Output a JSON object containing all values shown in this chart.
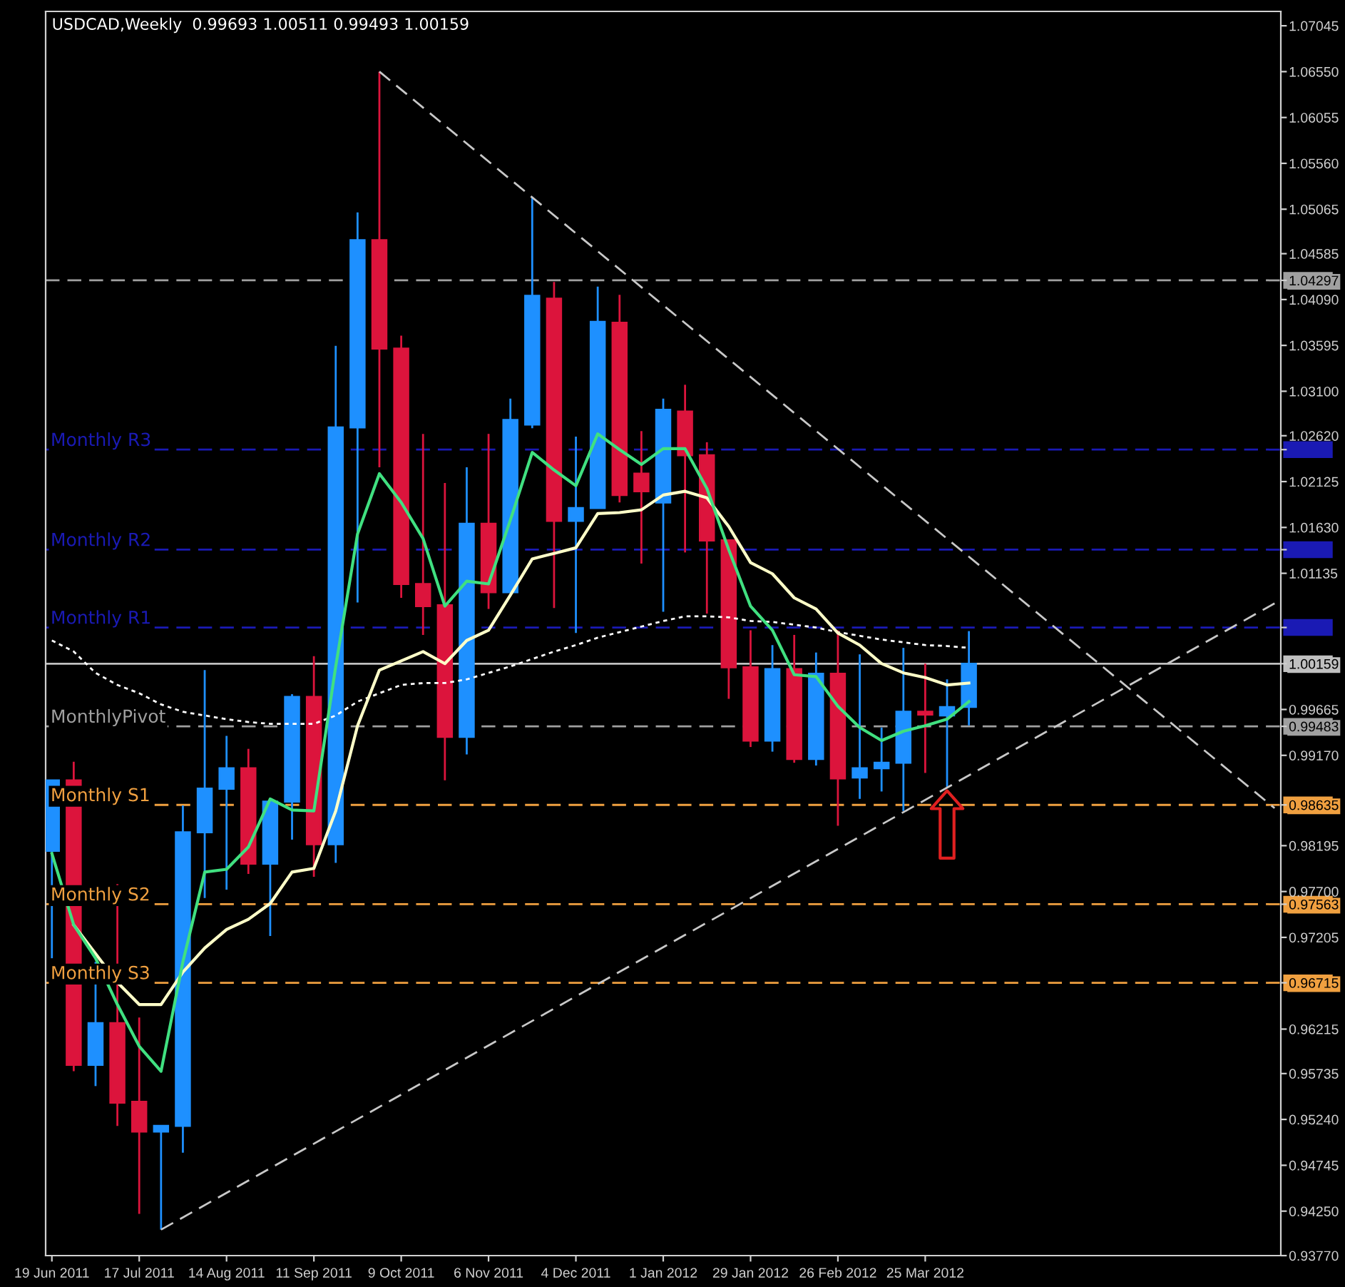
{
  "chart_data": {
    "type": "candlestick",
    "title": "USDCAD,Weekly  0.99693 1.00511 0.99493 1.00159",
    "x": [
      "2011-06-19",
      "2011-06-26",
      "2011-07-03",
      "2011-07-10",
      "2011-07-17",
      "2011-07-24",
      "2011-07-31",
      "2011-08-07",
      "2011-08-14",
      "2011-08-21",
      "2011-08-28",
      "2011-09-04",
      "2011-09-11",
      "2011-09-18",
      "2011-09-25",
      "2011-10-02",
      "2011-10-09",
      "2011-10-16",
      "2011-10-23",
      "2011-10-30",
      "2011-11-06",
      "2011-11-13",
      "2011-11-20",
      "2011-11-27",
      "2011-12-04",
      "2011-12-11",
      "2011-12-18",
      "2011-12-25",
      "2012-01-01",
      "2012-01-08",
      "2012-01-15",
      "2012-01-22",
      "2012-01-29",
      "2012-02-05",
      "2012-02-12",
      "2012-02-19",
      "2012-02-26",
      "2012-03-04",
      "2012-03-11",
      "2012-03-18",
      "2012-03-25",
      "2012-04-01",
      "2012-04-08"
    ],
    "ohlc": [
      [
        0.9814,
        0.989,
        0.9698,
        0.989
      ],
      [
        0.989,
        0.991,
        0.9576,
        0.9583
      ],
      [
        0.9583,
        0.9694,
        0.956,
        0.9628
      ],
      [
        0.9628,
        0.9778,
        0.9517,
        0.9542
      ],
      [
        0.9543,
        0.9634,
        0.9422,
        0.9511
      ],
      [
        0.9511,
        0.9517,
        0.9405,
        0.9517
      ],
      [
        0.9517,
        0.9863,
        0.9488,
        0.9834
      ],
      [
        0.9834,
        1.0009,
        0.9763,
        0.9881
      ],
      [
        0.9881,
        0.9938,
        0.9772,
        0.9903
      ],
      [
        0.9903,
        0.9924,
        0.9789,
        0.98
      ],
      [
        0.98,
        0.987,
        0.9722,
        0.9867
      ],
      [
        0.9867,
        0.9983,
        0.9826,
        0.998
      ],
      [
        0.998,
        1.0024,
        0.9786,
        0.9821
      ],
      [
        0.9821,
        1.0359,
        0.9801,
        1.0271
      ],
      [
        1.0271,
        1.0503,
        1.0082,
        1.0473
      ],
      [
        1.0473,
        1.0655,
        1.0228,
        1.0356
      ],
      [
        1.0356,
        1.037,
        1.0087,
        1.0102
      ],
      [
        1.0102,
        1.0264,
        1.0047,
        1.0078
      ],
      [
        1.0079,
        1.0211,
        0.989,
        0.9937
      ],
      [
        0.9937,
        1.0228,
        0.9918,
        1.0167
      ],
      [
        1.0167,
        1.0264,
        1.0075,
        1.0093
      ],
      [
        1.0093,
        1.0302,
        1.0093,
        1.0279
      ],
      [
        1.0274,
        1.052,
        1.027,
        1.0413
      ],
      [
        1.041,
        1.0428,
        1.0076,
        1.017
      ],
      [
        1.017,
        1.0261,
        1.0049,
        1.0184
      ],
      [
        1.0184,
        1.0423,
        1.0184,
        1.0385
      ],
      [
        1.0384,
        1.0414,
        1.019,
        1.0198
      ],
      [
        1.0221,
        1.0267,
        1.0124,
        1.0202
      ],
      [
        1.019,
        1.0302,
        1.0072,
        1.029
      ],
      [
        1.0288,
        1.0317,
        1.0136,
        1.0241
      ],
      [
        1.0241,
        1.0255,
        1.007,
        1.0149
      ],
      [
        1.0149,
        1.0149,
        0.9978,
        1.0012
      ],
      [
        1.0012,
        1.0052,
        0.9926,
        0.9933
      ],
      [
        0.9933,
        1.0036,
        0.9921,
        1.001
      ],
      [
        1.001,
        1.0047,
        0.9909,
        0.9913
      ],
      [
        0.9913,
        1.0028,
        0.9906,
        1.0005
      ],
      [
        1.0005,
        1.0052,
        0.9841,
        0.9892
      ],
      [
        0.9893,
        1.0026,
        0.987,
        0.9903
      ],
      [
        0.9903,
        0.9947,
        0.9878,
        0.9909
      ],
      [
        0.9909,
        1.0033,
        0.9857,
        0.9964
      ],
      [
        0.9964,
        1.0016,
        0.9898,
        0.9961
      ],
      [
        0.996,
        0.9999,
        0.9883,
        0.9969
      ],
      [
        0.99693,
        1.00511,
        0.99493,
        1.00159
      ]
    ],
    "colors": [
      "#1e90ff",
      "#dc143c",
      "#1e90ff",
      "#dc143c",
      "#dc143c",
      "#1e90ff",
      "#1e90ff",
      "#1e90ff",
      "#1e90ff",
      "#dc143c",
      "#1e90ff",
      "#1e90ff",
      "#dc143c",
      "#1e90ff",
      "#1e90ff",
      "#dc143c",
      "#dc143c",
      "#dc143c",
      "#dc143c",
      "#1e90ff",
      "#dc143c",
      "#1e90ff",
      "#1e90ff",
      "#dc143c",
      "#1e90ff",
      "#1e90ff",
      "#dc143c",
      "#dc143c",
      "#1e90ff",
      "#dc143c",
      "#dc143c",
      "#dc143c",
      "#dc143c",
      "#1e90ff",
      "#dc143c",
      "#1e90ff",
      "#dc143c",
      "#1e90ff",
      "#1e90ff",
      "#1e90ff",
      "#dc143c",
      "#1e90ff",
      "#1e90ff"
    ],
    "series": [
      {
        "type": "line",
        "color": "#ffffff",
        "line_style": "dotted",
        "values": [
          1.0041,
          1.0029,
          1.0006,
          0.9993,
          0.9984,
          0.9972,
          0.9964,
          0.996,
          0.9956,
          0.9953,
          0.9951,
          0.9951,
          0.9951,
          0.996,
          0.9975,
          0.9984,
          0.9993,
          0.9995,
          0.9995,
          0.9999,
          1.0006,
          1.0013,
          1.0021,
          1.0029,
          1.0036,
          1.0044,
          1.005,
          1.0056,
          1.0062,
          1.0067,
          1.0067,
          1.0066,
          1.0062,
          1.0061,
          1.0058,
          1.0055,
          1.005,
          1.0046,
          1.0042,
          1.0039,
          1.0036,
          1.0035,
          1.0033
        ]
      },
      {
        "type": "line",
        "color": "#ffffc8",
        "line_style": "solid",
        "values": [
          null,
          0.9734,
          0.9703,
          0.9672,
          0.9648,
          0.9648,
          0.9683,
          0.9709,
          0.9729,
          0.974,
          0.9757,
          0.9791,
          0.9795,
          0.9857,
          0.9949,
          1.0009,
          1.0019,
          1.0029,
          1.0016,
          1.0041,
          1.0052,
          1.009,
          1.0129,
          1.0135,
          1.0141,
          1.0178,
          1.0179,
          1.0182,
          1.0198,
          1.0202,
          1.0195,
          1.0164,
          1.0125,
          1.0113,
          1.0087,
          1.0075,
          1.0049,
          1.0036,
          1.0016,
          1.0006,
          1.0001,
          0.9993,
          0.9995
        ]
      },
      {
        "type": "line",
        "color": "#40e080",
        "line_style": "solid",
        "values": [
          0.9811,
          0.9734,
          0.9698,
          0.9648,
          0.9603,
          0.9576,
          0.9694,
          0.9791,
          0.9794,
          0.9818,
          0.987,
          0.9858,
          0.9857,
          1.0013,
          1.0156,
          1.0221,
          1.019,
          1.0151,
          1.0078,
          1.0105,
          1.0102,
          1.0171,
          1.0244,
          1.0225,
          1.0208,
          1.0264,
          1.0247,
          1.0231,
          1.0248,
          1.0248,
          1.0205,
          1.0139,
          1.0078,
          1.0052,
          1.0004,
          1.0002,
          0.997,
          0.9947,
          0.9933,
          0.9943,
          0.9949,
          0.9956,
          0.9975
        ]
      },
      {
        "type": "line",
        "color": "#c8c8c8",
        "line_style": "dashed",
        "x": [
          "2011-10-02",
          "2012-07-15"
        ],
        "values": [
          1.0655,
          0.986
        ]
      },
      {
        "type": "line",
        "color": "#c8c8c8",
        "line_style": "dashed",
        "x": [
          "2011-07-24",
          "2012-07-15"
        ],
        "values": [
          0.9405,
          1.0081
        ]
      }
    ],
    "ref_lines": [
      {
        "axis": "y",
        "value": 1.04297,
        "label": null,
        "color": "#a0a0a0",
        "line_style": "dashed"
      },
      {
        "axis": "y",
        "value": 1.0247,
        "label": "Monthly R3",
        "color": "#1a1ab4",
        "line_style": "dashed"
      },
      {
        "axis": "y",
        "value": 1.0139,
        "label": "Monthly R2",
        "color": "#1a1ab4",
        "line_style": "dashed"
      },
      {
        "axis": "y",
        "value": 1.0055,
        "label": "Monthly R1",
        "color": "#1a1ab4",
        "line_style": "dashed"
      },
      {
        "axis": "y",
        "value": 1.00159,
        "label": null,
        "color": "#c0c0c0",
        "line_style": "solid"
      },
      {
        "axis": "y",
        "value": 0.99483,
        "label": "MonthlyPivot",
        "color": "#a0a0a0",
        "line_style": "dashed"
      },
      {
        "axis": "y",
        "value": 0.98635,
        "label": "Monthly S1",
        "color": "#f0a040",
        "line_style": "dashed"
      },
      {
        "axis": "y",
        "value": 0.97563,
        "label": "Monthly S2",
        "color": "#f0a040",
        "line_style": "dashed"
      },
      {
        "axis": "y",
        "value": 0.96715,
        "label": "Monthly S3",
        "color": "#f0a040",
        "line_style": "dashed"
      }
    ],
    "xlim": [
      "2011-06-17",
      "2012-07-17"
    ],
    "xticks": [
      {
        "value": "2011-06-19",
        "label": "19 Jun 2011"
      },
      {
        "value": "2011-07-17",
        "label": "17 Jul 2011"
      },
      {
        "value": "2011-08-14",
        "label": "14 Aug 2011"
      },
      {
        "value": "2011-09-11",
        "label": "11 Sep 2011"
      },
      {
        "value": "2011-10-09",
        "label": "9 Oct 2011"
      },
      {
        "value": "2011-11-06",
        "label": "6 Nov 2011"
      },
      {
        "value": "2011-12-04",
        "label": "4 Dec 2011"
      },
      {
        "value": "2012-01-01",
        "label": "1 Jan 2012"
      },
      {
        "value": "2012-01-29",
        "label": "29 Jan 2012"
      },
      {
        "value": "2012-02-26",
        "label": "26 Feb 2012"
      },
      {
        "value": "2012-03-25",
        "label": "25 Mar 2012"
      }
    ],
    "ylim": [
      0.9377,
      1.072
    ],
    "yticks": [
      {
        "value": 1.04297,
        "label": "1.04297"
      },
      {
        "value": 1.0247,
        "label": null
      },
      {
        "value": 1.0139,
        "label": null
      },
      {
        "value": 1.0055,
        "label": null
      },
      {
        "value": 1.00159,
        "label": "1.00159"
      },
      {
        "value": 0.99483,
        "label": "0.99483"
      },
      {
        "value": 0.98635,
        "label": "0.98635"
      },
      {
        "value": 0.97563,
        "label": "0.97563"
      },
      {
        "value": 0.96715,
        "label": "0.96715"
      },
      {
        "value": 1.07045,
        "label": "1.07045"
      },
      {
        "value": 1.0655,
        "label": "1.06550"
      },
      {
        "value": 1.06055,
        "label": "1.06055"
      },
      {
        "value": 1.0556,
        "label": "1.05560"
      },
      {
        "value": 1.05065,
        "label": "1.05065"
      },
      {
        "value": 1.04585,
        "label": "1.04585"
      },
      {
        "value": 1.0409,
        "label": "1.04090"
      },
      {
        "value": 1.03595,
        "label": "1.03595"
      },
      {
        "value": 1.031,
        "label": "1.03100"
      },
      {
        "value": 1.0262,
        "label": "1.02620"
      },
      {
        "value": 1.02125,
        "label": "1.02125"
      },
      {
        "value": 1.0163,
        "label": "1.01630"
      },
      {
        "value": 1.01135,
        "label": "1.01135"
      },
      {
        "value": 0.99665,
        "label": "0.99665"
      },
      {
        "value": 0.9917,
        "label": "0.99170"
      },
      {
        "value": 0.98195,
        "label": "0.98195"
      },
      {
        "value": 0.977,
        "label": "0.97700"
      },
      {
        "value": 0.97205,
        "label": "0.97205"
      },
      {
        "value": 0.96215,
        "label": "0.96215"
      },
      {
        "value": 0.95735,
        "label": "0.95735"
      },
      {
        "value": 0.9524,
        "label": "0.95240"
      },
      {
        "value": 0.94745,
        "label": "0.94745"
      },
      {
        "value": 0.9425,
        "label": "0.94250"
      },
      {
        "value": 0.9377,
        "label": "0.93770"
      }
    ]
  }
}
